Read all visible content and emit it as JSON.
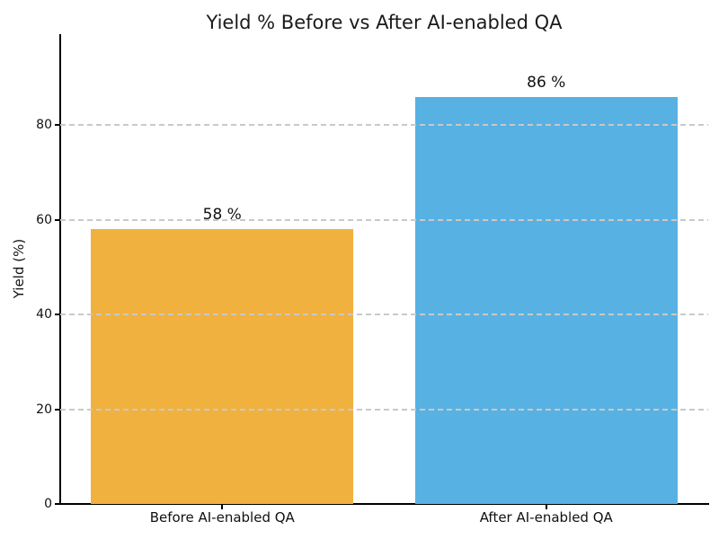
{
  "chart_data": {
    "type": "bar",
    "title": "Yield % Before vs After AI-enabled QA",
    "xlabel": "",
    "ylabel": "Yield (%)",
    "categories": [
      "Before AI-enabled QA",
      "After AI-enabled QA"
    ],
    "values": [
      58,
      86
    ],
    "value_labels": [
      "58 %",
      "86 %"
    ],
    "bar_colors": [
      "#F1B13E",
      "#57B2E3"
    ],
    "yticks": [
      0,
      20,
      40,
      60,
      80
    ],
    "ylim": [
      0,
      99
    ],
    "bar_width_fraction": 0.81,
    "grid": {
      "axis": "y",
      "style": "dashed",
      "color": "#c9c9c9",
      "over_bars": true
    },
    "legend": "none",
    "colors": {
      "background": "#ffffff",
      "axis": "#000000",
      "text": "#111111",
      "title_text": "#1a1a1a"
    }
  }
}
